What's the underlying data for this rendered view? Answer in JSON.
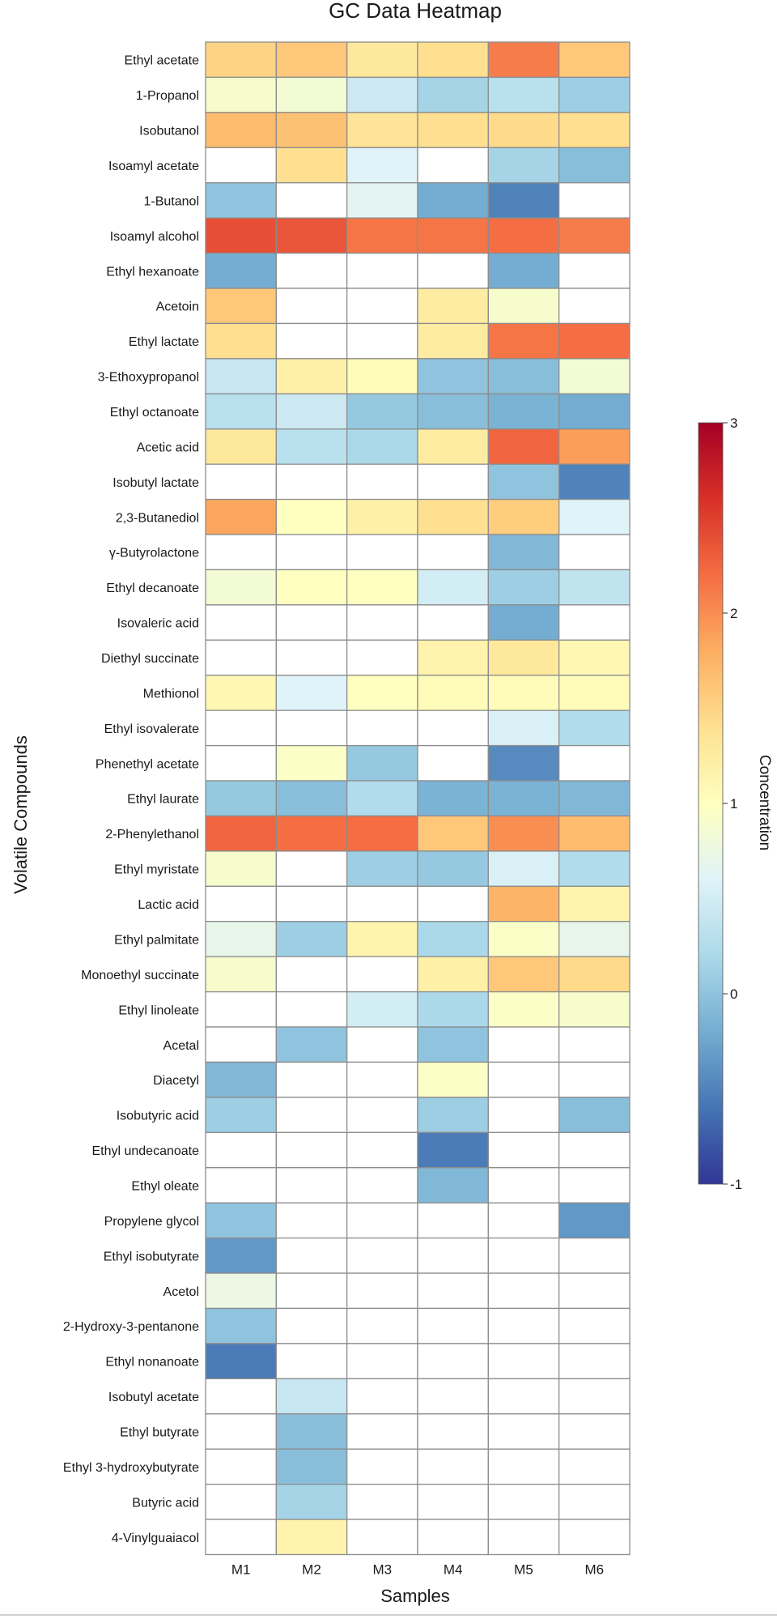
{
  "chart_data": {
    "type": "heatmap",
    "title": "GC Data Heatmap",
    "xlabel": "Samples",
    "ylabel": "Volatile Compounds",
    "colorbar_label": "Concentration",
    "colorbar_ticks": [
      "3",
      "2",
      "1",
      "0",
      "-1"
    ],
    "colorbar_range": [
      -1,
      3
    ],
    "colormap": "RdYlBu_r",
    "missing_color": "#ffffff",
    "grid_color": "#8c8c8c",
    "columns": [
      "M1",
      "M2",
      "M3",
      "M4",
      "M5",
      "M6"
    ],
    "rows": [
      {
        "name": "Ethyl acetate",
        "values": [
          1.5,
          1.6,
          1.3,
          1.4,
          2.1,
          1.6
        ]
      },
      {
        "name": "1-Propanol",
        "values": [
          0.9,
          0.85,
          0.45,
          0.15,
          0.3,
          0.1
        ]
      },
      {
        "name": "Isobutanol",
        "values": [
          1.7,
          1.65,
          1.35,
          1.4,
          1.45,
          1.4
        ]
      },
      {
        "name": "Isoamyl acetate",
        "values": [
          null,
          1.4,
          0.6,
          null,
          0.15,
          -0.05
        ]
      },
      {
        "name": "1-Butanol",
        "values": [
          0.0,
          null,
          0.65,
          -0.2,
          -0.5,
          null
        ]
      },
      {
        "name": "Isoamyl alcohol",
        "values": [
          2.4,
          2.35,
          2.15,
          2.15,
          2.2,
          2.1
        ]
      },
      {
        "name": "Ethyl hexanoate",
        "values": [
          -0.2,
          null,
          null,
          null,
          -0.2,
          null
        ]
      },
      {
        "name": "Acetoin",
        "values": [
          1.6,
          null,
          null,
          1.25,
          0.9,
          null
        ]
      },
      {
        "name": "Ethyl lactate",
        "values": [
          1.4,
          null,
          null,
          1.25,
          2.15,
          2.2
        ]
      },
      {
        "name": "3-Ethoxypropanol",
        "values": [
          0.4,
          1.2,
          1.05,
          0.0,
          -0.05,
          0.85
        ]
      },
      {
        "name": "Ethyl octanoate",
        "values": [
          0.3,
          0.45,
          0.05,
          -0.05,
          -0.15,
          -0.2
        ]
      },
      {
        "name": "Acetic acid",
        "values": [
          1.3,
          0.3,
          0.2,
          1.25,
          2.25,
          1.9
        ]
      },
      {
        "name": "Isobutyl lactate",
        "values": [
          null,
          null,
          null,
          null,
          0.0,
          -0.5
        ]
      },
      {
        "name": "2,3-Butanediol",
        "values": [
          1.85,
          1.0,
          1.2,
          1.4,
          1.55,
          0.6
        ]
      },
      {
        "name": "γ-Butyrolactone",
        "values": [
          null,
          null,
          null,
          null,
          -0.1,
          null
        ]
      },
      {
        "name": "Ethyl decanoate",
        "values": [
          0.85,
          1.0,
          1.0,
          0.5,
          0.1,
          0.35
        ]
      },
      {
        "name": "Isovaleric acid",
        "values": [
          null,
          null,
          null,
          null,
          -0.2,
          null
        ]
      },
      {
        "name": "Diethyl succinate",
        "values": [
          null,
          null,
          null,
          1.15,
          1.3,
          1.1
        ]
      },
      {
        "name": "Methionol",
        "values": [
          1.1,
          0.6,
          1.0,
          1.05,
          1.05,
          1.05
        ]
      },
      {
        "name": "Ethyl isovalerate",
        "values": [
          null,
          null,
          null,
          null,
          0.55,
          0.25
        ]
      },
      {
        "name": "Phenethyl acetate",
        "values": [
          null,
          0.95,
          0.05,
          null,
          -0.45,
          null
        ]
      },
      {
        "name": "Ethyl laurate",
        "values": [
          0.05,
          -0.05,
          0.25,
          -0.15,
          -0.15,
          -0.1
        ]
      },
      {
        "name": "2-Phenylethanol",
        "values": [
          2.25,
          2.2,
          2.2,
          1.6,
          2.0,
          1.7
        ]
      },
      {
        "name": "Ethyl myristate",
        "values": [
          0.9,
          null,
          0.1,
          0.05,
          0.55,
          0.25
        ]
      },
      {
        "name": "Lactic acid",
        "values": [
          null,
          null,
          null,
          null,
          1.75,
          1.15
        ]
      },
      {
        "name": "Ethyl palmitate",
        "values": [
          0.7,
          0.1,
          1.15,
          0.2,
          0.95,
          0.7
        ]
      },
      {
        "name": "Monoethyl succinate",
        "values": [
          0.9,
          null,
          null,
          1.2,
          1.6,
          1.45
        ]
      },
      {
        "name": "Ethyl linoleate",
        "values": [
          null,
          null,
          0.5,
          0.2,
          0.95,
          0.9
        ]
      },
      {
        "name": "Acetal",
        "values": [
          null,
          0.0,
          null,
          0.0,
          null,
          null
        ]
      },
      {
        "name": "Diacetyl",
        "values": [
          -0.1,
          null,
          null,
          0.95,
          null,
          null
        ]
      },
      {
        "name": "Isobutyric acid",
        "values": [
          0.1,
          null,
          null,
          0.1,
          null,
          -0.05
        ]
      },
      {
        "name": "Ethyl undecanoate",
        "values": [
          null,
          null,
          null,
          -0.55,
          null,
          null
        ]
      },
      {
        "name": "Ethyl oleate",
        "values": [
          null,
          null,
          null,
          -0.1,
          null,
          null
        ]
      },
      {
        "name": "Propylene glycol",
        "values": [
          0.0,
          null,
          null,
          null,
          null,
          -0.35
        ]
      },
      {
        "name": "Ethyl isobutyrate",
        "values": [
          -0.35,
          null,
          null,
          null,
          null,
          null
        ]
      },
      {
        "name": "Acetol",
        "values": [
          0.75,
          null,
          null,
          null,
          null,
          null
        ]
      },
      {
        "name": "2-Hydroxy-3-pentanone",
        "values": [
          0.0,
          null,
          null,
          null,
          null,
          null
        ]
      },
      {
        "name": "Ethyl nonanoate",
        "values": [
          -0.55,
          null,
          null,
          null,
          null,
          null
        ]
      },
      {
        "name": "Isobutyl acetate",
        "values": [
          null,
          0.4,
          null,
          null,
          null,
          null
        ]
      },
      {
        "name": "Ethyl butyrate",
        "values": [
          null,
          -0.05,
          null,
          null,
          null,
          null
        ]
      },
      {
        "name": "Ethyl 3-hydroxybutyrate",
        "values": [
          null,
          -0.05,
          null,
          null,
          null,
          null
        ]
      },
      {
        "name": "Butyric acid",
        "values": [
          null,
          0.15,
          null,
          null,
          null,
          null
        ]
      },
      {
        "name": "4-Vinylguaiacol",
        "values": [
          null,
          1.15,
          null,
          null,
          null,
          null
        ]
      }
    ]
  }
}
